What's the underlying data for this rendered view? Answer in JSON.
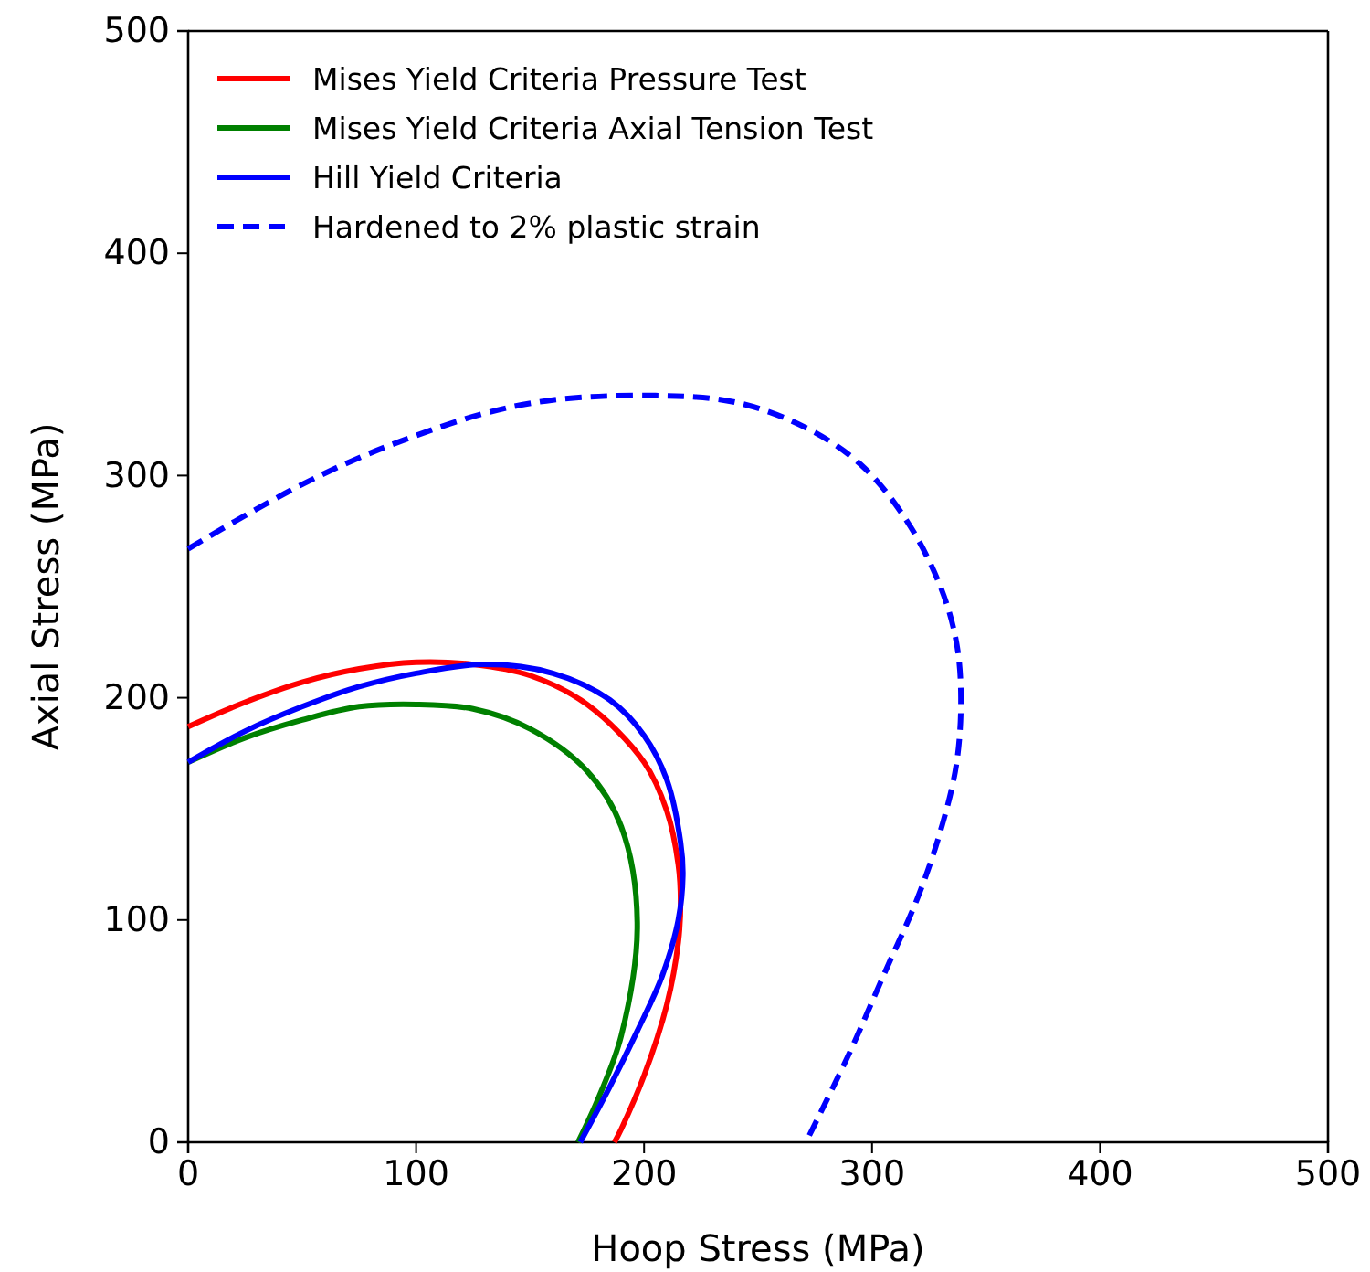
{
  "chart_data": {
    "type": "line",
    "xlabel": "Hoop Stress (MPa)",
    "ylabel": "Axial Stress (MPa)",
    "xlim": [
      0,
      500
    ],
    "ylim": [
      0,
      500
    ],
    "xticks": [
      0,
      100,
      200,
      300,
      400,
      500
    ],
    "yticks": [
      0,
      100,
      200,
      300,
      400,
      500
    ],
    "grid": false,
    "legend": "top left",
    "marker": "none",
    "series": [
      {
        "name": "Mises Yield Criteria Pressure Test",
        "color": "#ff0000",
        "line_style": "solid",
        "x": [
          0,
          25,
          50,
          75,
          100,
          125,
          150,
          175,
          200,
          210,
          215,
          216,
          215,
          210,
          200,
          190,
          187
        ],
        "values": [
          187,
          198,
          207,
          213,
          216,
          215,
          210,
          197,
          171,
          149,
          125,
          108,
          90,
          62,
          30,
          6,
          0
        ]
      },
      {
        "name": "Mises Yield Criteria Axial Tension Test",
        "color": "#008000",
        "line_style": "solid",
        "x": [
          0,
          25,
          50,
          75,
          100,
          125,
          150,
          175,
          190,
          197,
          190,
          180,
          171
        ],
        "values": [
          171,
          182,
          190,
          196,
          197,
          195,
          186,
          167,
          142,
          99,
          48,
          20,
          0
        ]
      },
      {
        "name": "Hill Yield Criteria",
        "color": "#0000ff",
        "line_style": "solid",
        "x": [
          0,
          25,
          50,
          75,
          100,
          130,
          160,
          185,
          200,
          210,
          216,
          217,
          215,
          208,
          197,
          185,
          172
        ],
        "values": [
          171,
          185,
          196,
          205,
          211,
          215,
          211,
          199,
          183,
          163,
          135,
          120,
          100,
          75,
          50,
          25,
          0
        ]
      },
      {
        "name": "Hardened to 2% plastic strain",
        "color": "#0000ff",
        "line_style": "dashed",
        "x": [
          0,
          25,
          50,
          75,
          100,
          130,
          160,
          205,
          240,
          270,
          295,
          315,
          330,
          337,
          339,
          337,
          330,
          320,
          305,
          290,
          271
        ],
        "values": [
          267,
          282,
          296,
          308,
          318,
          328,
          334,
          336,
          333,
          322,
          305,
          280,
          250,
          225,
          200,
          170,
          140,
          110,
          75,
          40,
          0
        ]
      }
    ]
  }
}
